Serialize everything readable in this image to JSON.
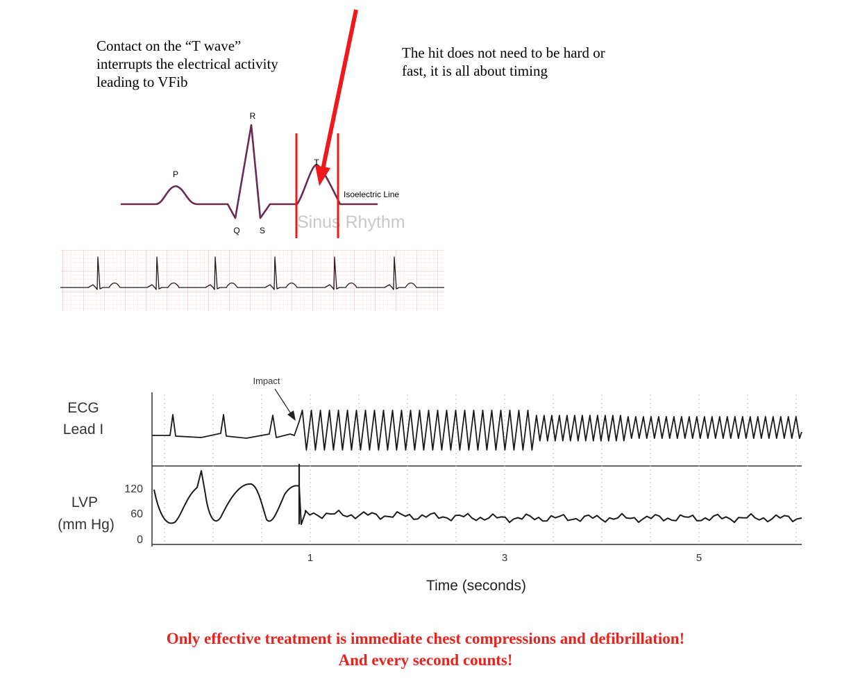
{
  "notes": {
    "t_wave_contact": [
      "Contact on the “T wave”",
      "interrupts the electrical activity",
      "leading to VFib"
    ],
    "timing": [
      "The hit does not need to be hard or",
      "fast, it is all about timing"
    ]
  },
  "wave_labels": {
    "p": "P",
    "q": "Q",
    "r": "R",
    "s": "S",
    "t": "T",
    "isoelectric": "Isoelectric Line",
    "rhythm": "Sinus Rhythm"
  },
  "recording": {
    "impact_label": "Impact",
    "ecg_label": [
      "ECG",
      "Lead I"
    ],
    "lvp_label": [
      "LVP",
      "(mm Hg)"
    ],
    "lvp_ticks": [
      "120",
      "60",
      "0"
    ],
    "time_ticks": [
      "1",
      "3",
      "5"
    ],
    "time_axis_label": "Time (seconds)"
  },
  "conclusion": {
    "line1": "Only effective treatment is immediate chest compressions and defibrillation!",
    "line2": "And every second counts!"
  },
  "colors": {
    "waveform": "#6b2a52",
    "highlight": "#f01818",
    "grid_minor": "#fbdede",
    "grid_major": "#f4bcbc",
    "trace": "#1a1a1a",
    "message": "#e8231e"
  }
}
